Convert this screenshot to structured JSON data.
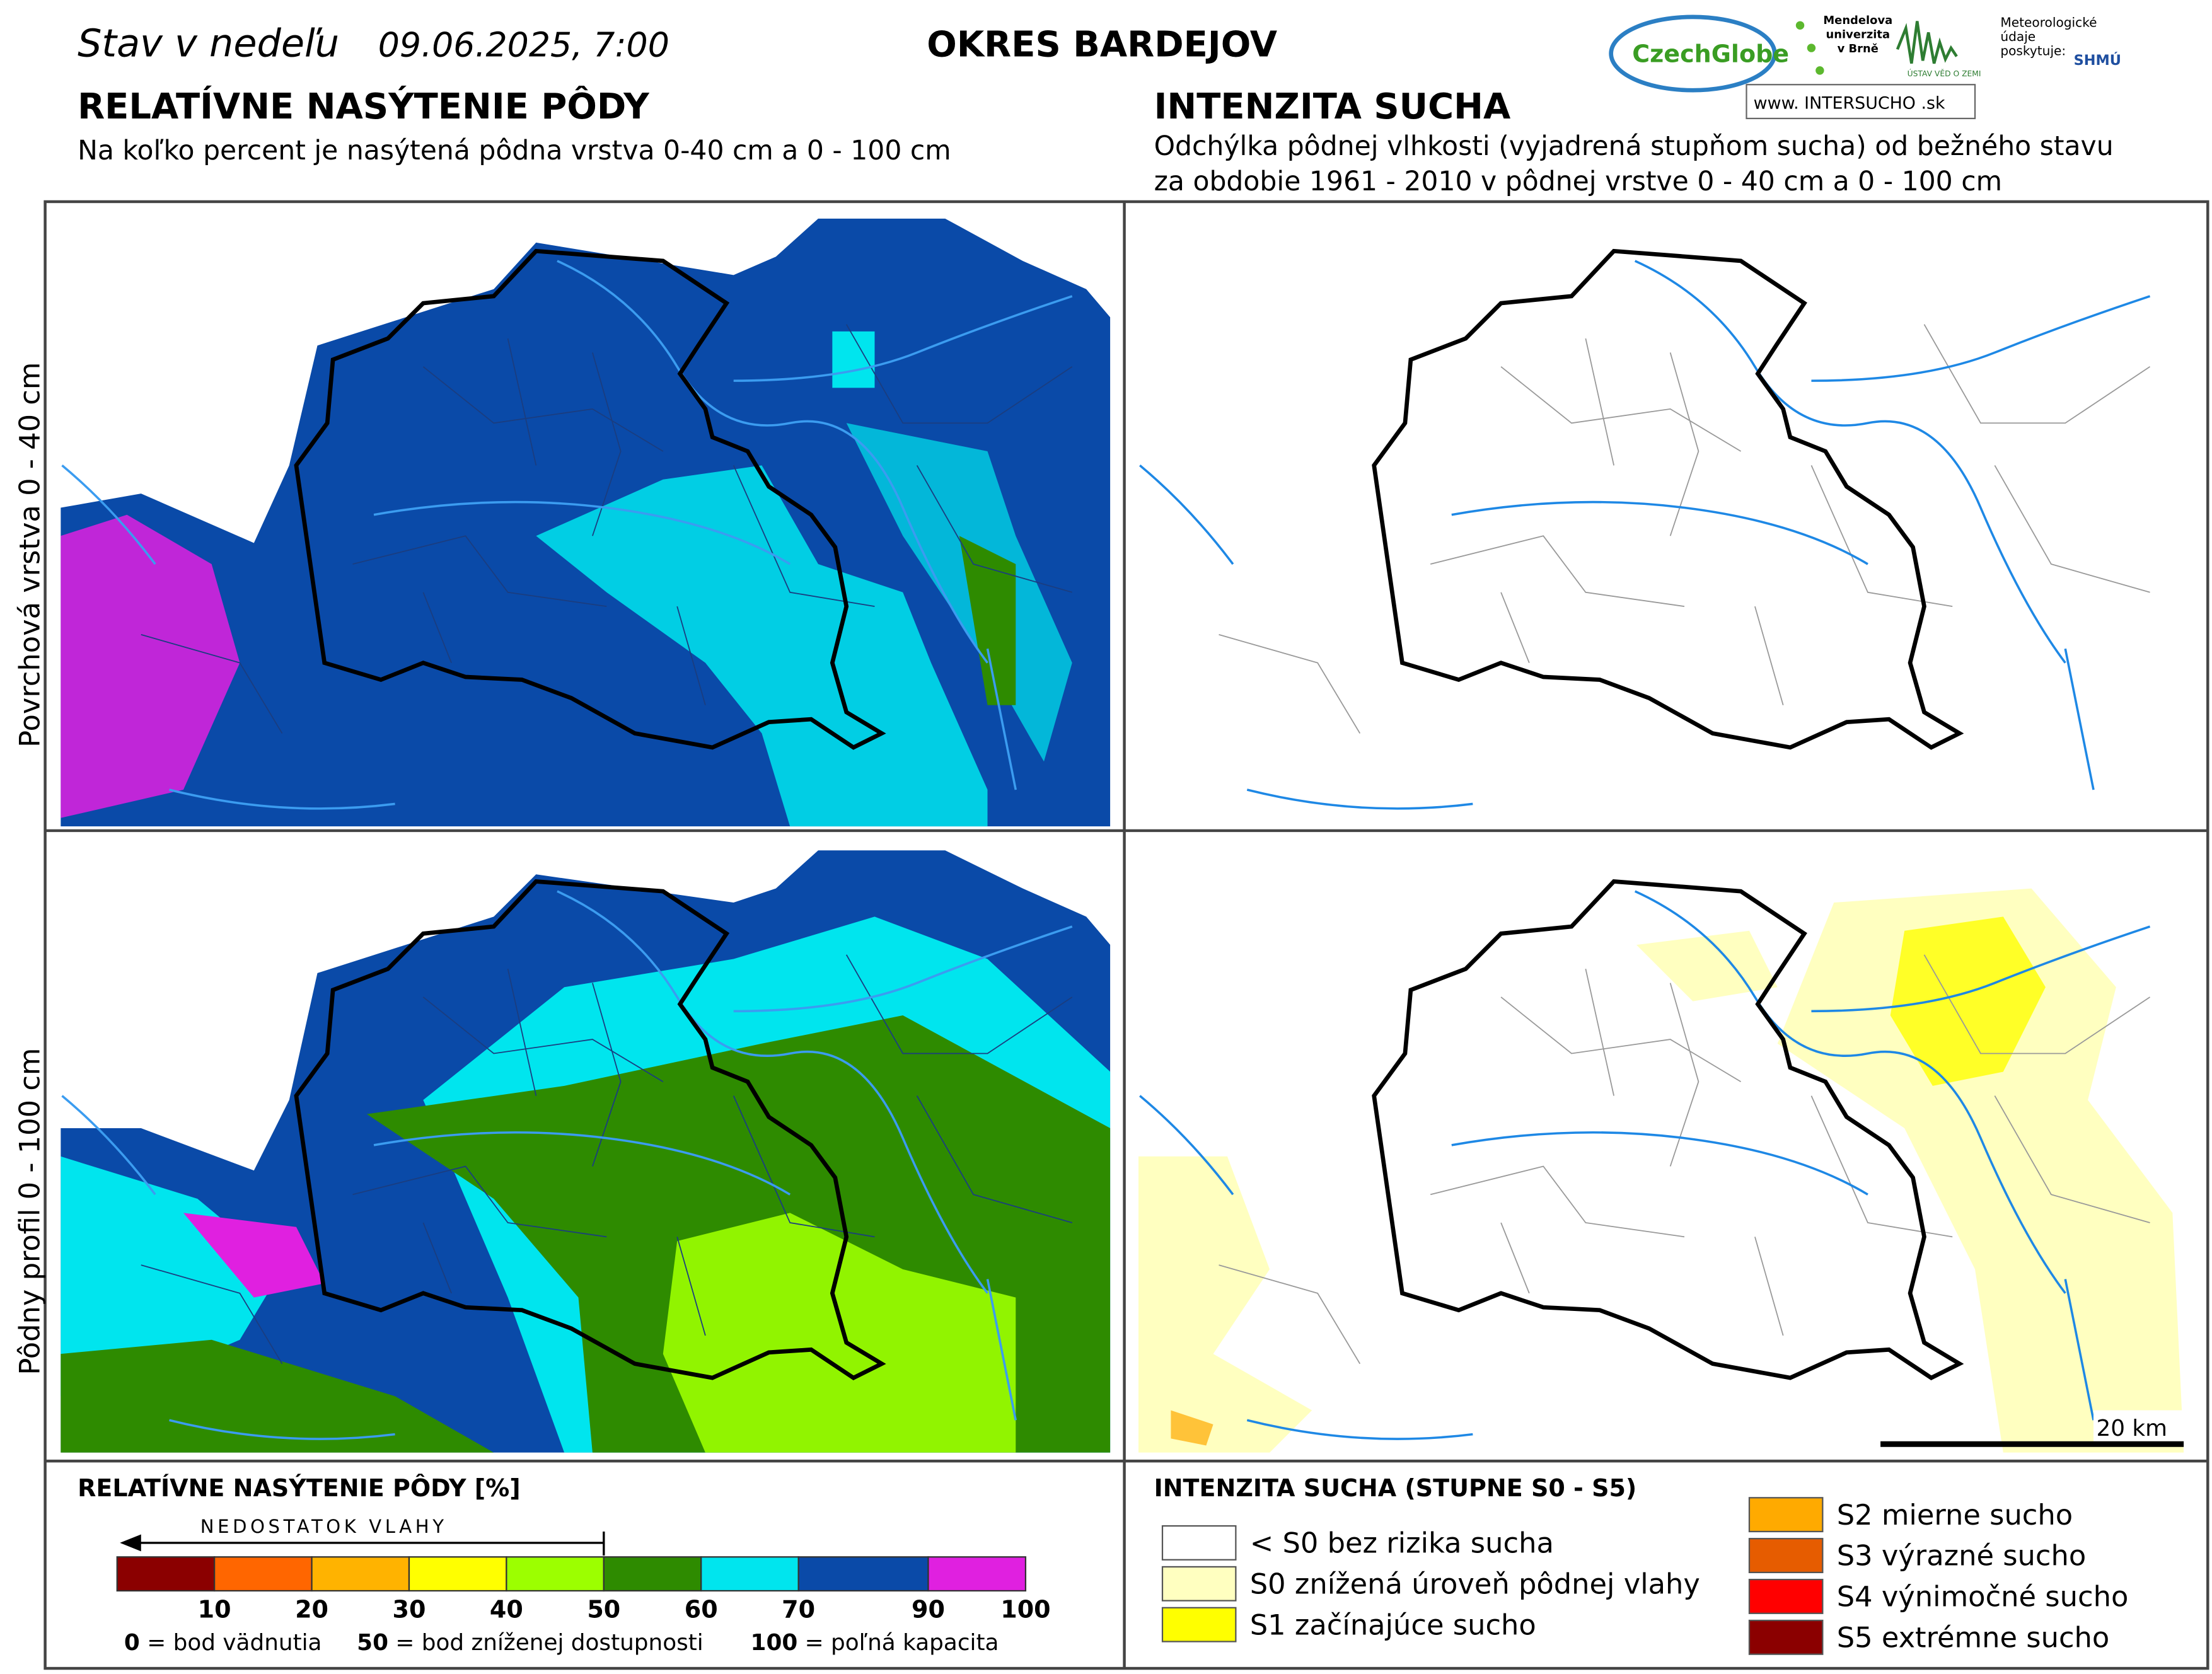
{
  "header": {
    "date_prefix": "Stav v nedeľu",
    "date": "09.06.2025, 7:00",
    "district": "OKRES  BARDEJOV",
    "logo_czechglobe": "CzechGlobe",
    "logo_mendel": "Mendelova univerzita v Brně",
    "logo_uvz": "ÚSTAV VĚD O ZEMI",
    "logo_meteo": "Meteorologické údaje poskytuje:",
    "logo_shmu": "SHMÚ",
    "logo_web": "www. INTERSUCHO .sk"
  },
  "left_section": {
    "title": "RELATÍVNE NASÝTENIE PÔDY",
    "subtitle": "Na koľko percent je nasýtená pôdna vrstva 0-40 cm a 0 - 100 cm"
  },
  "right_section": {
    "title": "INTENZITA SUCHA",
    "subtitle_lines": [
      "Odchýlka pôdnej vlhkosti (vyjadrená stupňom sucha) od bežného stavu",
      "za obdobie 1961 - 2010 v pôdnej vrstve 0 - 40 cm a 0 - 100 cm"
    ]
  },
  "row_labels": [
    "Povrchová vrstva 0 - 40 cm",
    "Pôdny profil 0 - 100 cm"
  ],
  "scale_bar": "20 km",
  "saturation_legend": {
    "title": "RELATÍVNE NASÝTENIE PÔDY [%]",
    "arrow_label": "NEDOSTATOK VLAHY",
    "classes": [
      {
        "color": "#8b0000",
        "upper": 10
      },
      {
        "color": "#ff6600",
        "upper": 20
      },
      {
        "color": "#ffb300",
        "upper": 30
      },
      {
        "color": "#ffff00",
        "upper": 40
      },
      {
        "color": "#9cff00",
        "upper": 50
      },
      {
        "color": "#2e8b00",
        "upper": 60
      },
      {
        "color": "#00e5ee",
        "upper": 70
      },
      {
        "color": "#0a4aa8",
        "upper": 90
      },
      {
        "color": "#e020e0",
        "upper": 100
      }
    ],
    "notes": [
      {
        "term": "0",
        "text": "= bod vädnutia"
      },
      {
        "term": "50",
        "text": "= bod zníženej dostupnosti"
      },
      {
        "term": "100",
        "text": "= poľná kapacita"
      }
    ]
  },
  "drought_legend": {
    "title": "INTENZITA SUCHA (STUPNE S0 - S5)",
    "classes": [
      {
        "color": "#ffffff",
        "label": "< S0 bez rizika sucha"
      },
      {
        "color": "#ffffc0",
        "label": "S0 znížená úroveň pôdnej vlahy"
      },
      {
        "color": "#ffff00",
        "label": "S1 začínajúce sucho"
      },
      {
        "color": "#ffaa00",
        "label": "S2 mierne sucho"
      },
      {
        "color": "#e65c00",
        "label": "S3 výrazné sucho"
      },
      {
        "color": "#ff0000",
        "label": "S4 výnimočné sucho"
      },
      {
        "color": "#8b0000",
        "label": "S5 extrémne sucho"
      }
    ]
  }
}
